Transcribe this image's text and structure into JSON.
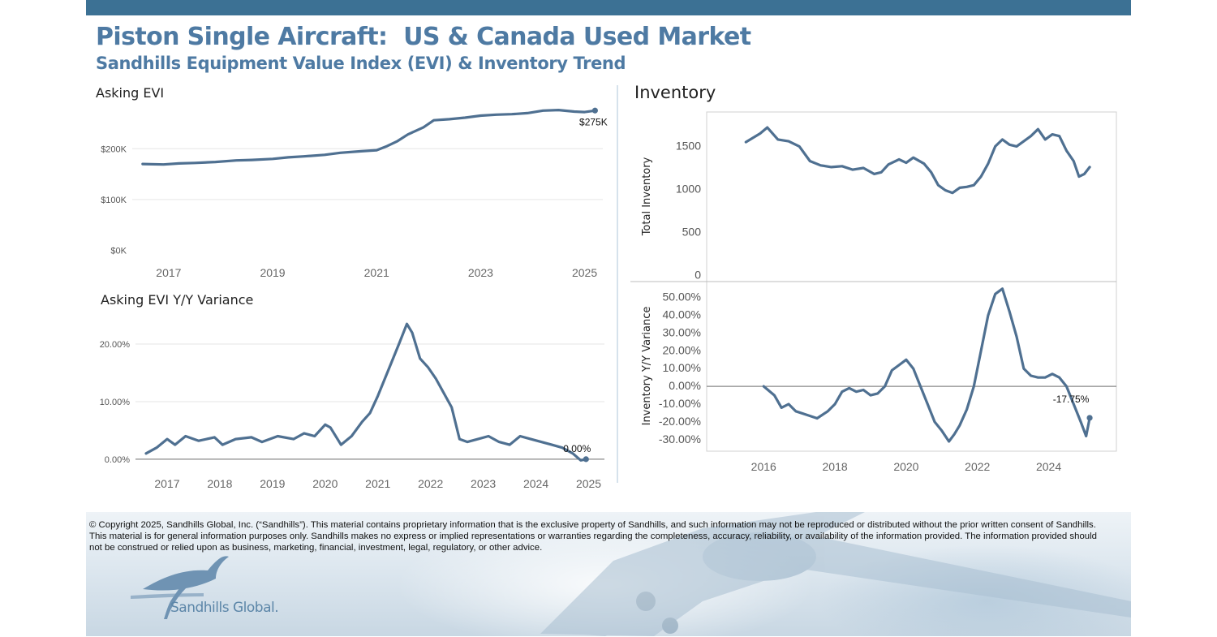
{
  "header": {
    "title": "Piston Single Aircraft:  US & Canada Used Market",
    "subtitle": "Sandhills Equipment Value Index (EVI) & Inventory Trend"
  },
  "colors": {
    "line": "#4f7091",
    "accent": "#3c7194",
    "grid": "#e6e6e6",
    "zero": "#888888"
  },
  "chart_data": [
    {
      "id": "asking-evi",
      "type": "line",
      "title": "Asking EVI",
      "xlabel": "",
      "ylabel": "",
      "xlim": [
        2016.3,
        2025.35
      ],
      "ylim": [
        -15000,
        285000
      ],
      "x_ticks": [
        2017,
        2019,
        2021,
        2023,
        2025
      ],
      "x_tick_labels": [
        "2017",
        "2019",
        "2021",
        "2023",
        "2025"
      ],
      "y_ticks": [
        0,
        100000,
        200000
      ],
      "y_tick_labels": [
        "$0K",
        "$100K",
        "$200K"
      ],
      "end_label": "$275K",
      "grid": true,
      "x": [
        2016.5,
        2016.9,
        2017.2,
        2017.5,
        2017.9,
        2018.3,
        2018.6,
        2019.0,
        2019.3,
        2019.6,
        2020.0,
        2020.3,
        2020.7,
        2021.0,
        2021.2,
        2021.4,
        2021.6,
        2021.9,
        2022.1,
        2022.4,
        2022.7,
        2023.0,
        2023.3,
        2023.6,
        2023.9,
        2024.2,
        2024.5,
        2024.8,
        2025.0,
        2025.2
      ],
      "y": [
        170000,
        169000,
        171000,
        172000,
        174000,
        177000,
        178000,
        180000,
        183000,
        185000,
        188000,
        192000,
        195000,
        197000,
        205000,
        215000,
        228000,
        242000,
        256000,
        258000,
        261000,
        265000,
        267000,
        268000,
        270000,
        275000,
        276000,
        273000,
        272000,
        275000
      ]
    },
    {
      "id": "asking-evi-yy",
      "type": "line",
      "title": "Asking EVI Y/Y Variance",
      "xlabel": "",
      "ylabel": "",
      "xlim": [
        2016.4,
        2025.3
      ],
      "ylim": [
        -0.3,
        24.8
      ],
      "x_ticks": [
        2017,
        2018,
        2019,
        2020,
        2021,
        2022,
        2023,
        2024,
        2025
      ],
      "x_tick_labels": [
        "2017",
        "2018",
        "2019",
        "2020",
        "2021",
        "2022",
        "2023",
        "2024",
        "2025"
      ],
      "y_ticks": [
        0,
        10,
        20
      ],
      "y_tick_labels": [
        "0.00%",
        "10.00%",
        "20.00%"
      ],
      "end_label": "0.00%",
      "grid": true,
      "x": [
        2016.6,
        2016.8,
        2017.0,
        2017.15,
        2017.35,
        2017.6,
        2017.9,
        2018.05,
        2018.3,
        2018.6,
        2018.8,
        2019.1,
        2019.4,
        2019.6,
        2019.8,
        2020.0,
        2020.1,
        2020.3,
        2020.5,
        2020.7,
        2020.85,
        2021.0,
        2021.2,
        2021.4,
        2021.55,
        2021.65,
        2021.8,
        2021.95,
        2022.1,
        2022.4,
        2022.55,
        2022.7,
        2022.9,
        2023.1,
        2023.3,
        2023.5,
        2023.7,
        2023.9,
        2024.1,
        2024.3,
        2024.5,
        2024.7,
        2024.85,
        2024.95
      ],
      "y": [
        1,
        2,
        3.5,
        2.5,
        4,
        3.2,
        3.8,
        2.5,
        3.5,
        3.8,
        3,
        4,
        3.5,
        4.5,
        4,
        6,
        5.5,
        2.5,
        4,
        6.5,
        8,
        11,
        15.5,
        20,
        23.5,
        22,
        17.5,
        16,
        14,
        9,
        3.5,
        3,
        3.5,
        4,
        3,
        2.5,
        4,
        3.5,
        3,
        2.5,
        2,
        1,
        -0.2,
        0
      ]
    },
    {
      "id": "inventory",
      "type": "line",
      "title": "Inventory",
      "xlabel": "",
      "ylabel": "Total Inventory",
      "xlim": [
        2014.4,
        2025.9
      ],
      "ylim": [
        -70,
        1900
      ],
      "x_ticks": [
        2016,
        2018,
        2020,
        2022,
        2024
      ],
      "x_tick_labels": [
        "2016",
        "2018",
        "2020",
        "2022",
        "2024"
      ],
      "y_ticks": [
        0,
        500,
        1000,
        1500
      ],
      "y_tick_labels": [
        "0",
        "500",
        "1000",
        "1500"
      ],
      "grid": false,
      "x": [
        2015.5,
        2015.9,
        2016.1,
        2016.4,
        2016.7,
        2017.0,
        2017.3,
        2017.6,
        2017.9,
        2018.2,
        2018.5,
        2018.8,
        2019.1,
        2019.3,
        2019.5,
        2019.8,
        2020.0,
        2020.2,
        2020.5,
        2020.7,
        2020.9,
        2021.1,
        2021.3,
        2021.5,
        2021.7,
        2021.9,
        2022.1,
        2022.3,
        2022.5,
        2022.7,
        2022.9,
        2023.1,
        2023.3,
        2023.5,
        2023.7,
        2023.9,
        2024.1,
        2024.3,
        2024.5,
        2024.7,
        2024.85,
        2025.0,
        2025.15
      ],
      "y": [
        1550,
        1650,
        1720,
        1580,
        1560,
        1500,
        1330,
        1280,
        1260,
        1270,
        1230,
        1250,
        1180,
        1200,
        1290,
        1350,
        1310,
        1370,
        1300,
        1200,
        1050,
        990,
        960,
        1020,
        1030,
        1050,
        1150,
        1300,
        1500,
        1580,
        1520,
        1500,
        1560,
        1620,
        1700,
        1580,
        1640,
        1620,
        1450,
        1330,
        1150,
        1180,
        1260
      ]
    },
    {
      "id": "inventory-yy",
      "type": "line",
      "title": "",
      "xlabel": "",
      "ylabel": "Inventory  Y/Y Variance",
      "xlim": [
        2014.4,
        2025.9
      ],
      "ylim": [
        -36.5,
        59
      ],
      "x_ticks": [
        2016,
        2018,
        2020,
        2022,
        2024
      ],
      "x_tick_labels": [
        "2016",
        "2018",
        "2020",
        "2022",
        "2024"
      ],
      "y_ticks": [
        -30,
        -20,
        -10,
        0,
        10,
        20,
        30,
        40,
        50
      ],
      "y_tick_labels": [
        "-30.00%",
        "-20.00%",
        "-10.00%",
        "0.00%",
        "10.00%",
        "20.00%",
        "30.00%",
        "40.00%",
        "50.00%"
      ],
      "end_label": "-17.75%",
      "grid": false,
      "x": [
        2016.0,
        2016.3,
        2016.5,
        2016.7,
        2016.9,
        2017.2,
        2017.5,
        2017.8,
        2018.0,
        2018.2,
        2018.4,
        2018.6,
        2018.8,
        2019.0,
        2019.2,
        2019.4,
        2019.6,
        2019.8,
        2020.0,
        2020.2,
        2020.4,
        2020.6,
        2020.8,
        2021.0,
        2021.2,
        2021.35,
        2021.5,
        2021.7,
        2021.9,
        2022.1,
        2022.3,
        2022.5,
        2022.7,
        2022.9,
        2023.1,
        2023.3,
        2023.5,
        2023.7,
        2023.9,
        2024.1,
        2024.3,
        2024.5,
        2024.7,
        2024.9,
        2025.05,
        2025.15
      ],
      "y": [
        0,
        -5,
        -12,
        -10,
        -14,
        -16,
        -18,
        -14,
        -10,
        -3,
        -1,
        -3,
        -2,
        -5,
        -4,
        0,
        9,
        12,
        15,
        10,
        0,
        -10,
        -20,
        -25,
        -31,
        -27,
        -22,
        -13,
        0,
        20,
        40,
        52,
        55,
        42,
        28,
        10,
        6,
        5,
        5,
        7,
        5,
        0,
        -10,
        -20,
        -28,
        -17.75
      ]
    }
  ],
  "footer": {
    "copyright": "© Copyright 2025, Sandhills Global, Inc. (“Sandhills”). This material contains proprietary information that is the exclusive property of Sandhills, and such information may not be reproduced or distributed without the prior written consent of Sandhills. This material is for general information purposes only. Sandhills makes no express or implied representations or warranties regarding the completeness, accuracy, reliability, or availability of the information provided. The information provided should not be construed or relied upon as business, marketing, financial, investment, legal, regulatory, or other advice.",
    "logo_text": "Sandhills Global."
  }
}
